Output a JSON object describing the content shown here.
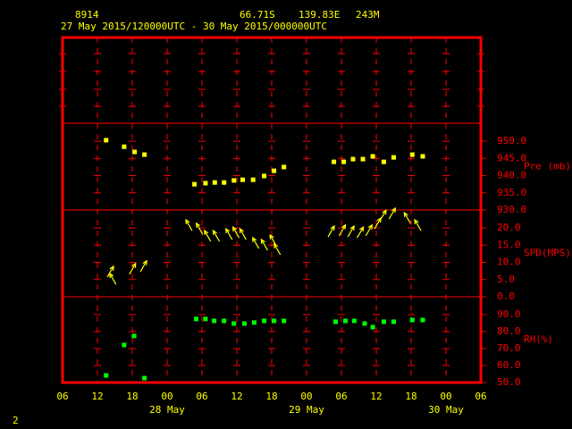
{
  "header": {
    "station": "8914",
    "lat": "66.71S",
    "lon": "139.83E",
    "elev": "243M",
    "period": "27 May 2015/120000UTC - 30 May 2015/000000UTC"
  },
  "page_number": "2",
  "chart_data": [
    {
      "type": "scatter",
      "ylabel": "Pre (mb)",
      "color": "#ffff00",
      "grid": true,
      "x": [
        7.5,
        10.6,
        12.4,
        14.1,
        22.7,
        24.6,
        26.2,
        27.8,
        29.5,
        31,
        32.8,
        34.7,
        36.4,
        38.1,
        46.7,
        48.4,
        50,
        51.7,
        53.4,
        55.3,
        57,
        60.2,
        62
      ],
      "values": [
        950.3,
        948.4,
        946.9,
        946.1,
        937.5,
        937.8,
        938,
        938,
        938.6,
        938.8,
        938.8,
        939.9,
        941.4,
        942.5,
        944,
        944,
        944.8,
        944.8,
        945.6,
        944,
        945.3,
        946.1,
        945.6
      ],
      "xlim": [
        0,
        72
      ],
      "ylim": [
        930,
        955.2
      ],
      "yticks": [
        {
          "value": 930,
          "label": "930.0"
        },
        {
          "value": 935,
          "label": "935.0"
        },
        {
          "value": 940,
          "label": "940.0"
        },
        {
          "value": 945,
          "label": "945.0"
        },
        {
          "value": 950,
          "label": "950.0"
        }
      ]
    },
    {
      "type": "wind",
      "ylabel": "SPD(MPS)",
      "color": "#ffff00",
      "grid": true,
      "x": [
        7.7,
        9.2,
        11.5,
        13.4,
        22.3,
        24.1,
        25.5,
        27,
        29.2,
        30.4,
        31.6,
        33.8,
        35.3,
        36.8,
        37.5,
        45.7,
        47.6,
        49.1,
        50.7,
        52.2,
        53.7,
        54.6,
        56.2,
        59.9,
        61.7
      ],
      "values": [
        5.7,
        3.6,
        6.5,
        7.3,
        19.2,
        18.2,
        16.1,
        16.1,
        16.6,
        17.1,
        16.6,
        14,
        13.5,
        14.8,
        12.2,
        17.4,
        17.7,
        17.4,
        17.1,
        17.7,
        19.7,
        22,
        22.6,
        21.3,
        19.2
      ],
      "directions": [
        30,
        330,
        30,
        30,
        330,
        330,
        330,
        330,
        330,
        330,
        330,
        330,
        330,
        330,
        330,
        30,
        30,
        30,
        30,
        30,
        30,
        30,
        30,
        330,
        330
      ],
      "xlim": [
        0,
        72
      ],
      "ylim": [
        0,
        25.2
      ],
      "yticks": [
        {
          "value": 0,
          "label": "0.0"
        },
        {
          "value": 5,
          "label": "5.0"
        },
        {
          "value": 10,
          "label": "10.0"
        },
        {
          "value": 15,
          "label": "15.0"
        },
        {
          "value": 20,
          "label": "20.0"
        }
      ]
    },
    {
      "type": "scatter",
      "ylabel": "RH(%)",
      "color": "#00ff00",
      "grid": true,
      "x": [
        7.5,
        10.6,
        12.3,
        14.1,
        23,
        24.6,
        26.1,
        27.8,
        29.5,
        31.3,
        33,
        34.7,
        36.4,
        38.1,
        47,
        48.7,
        50.2,
        52,
        53.4,
        55.3,
        57,
        60.2,
        62
      ],
      "values": [
        54.2,
        72.1,
        77.4,
        52.6,
        87.4,
        87.4,
        86.3,
        86.3,
        84.7,
        84.7,
        85.3,
        86.3,
        86.3,
        86.3,
        85.8,
        86.3,
        86.3,
        84.7,
        82.6,
        85.8,
        85.8,
        86.8,
        86.8
      ],
      "xlim": [
        0,
        72
      ],
      "ylim": [
        50,
        100.5
      ],
      "yticks": [
        {
          "value": 50,
          "label": "50.0"
        },
        {
          "value": 60,
          "label": "60.0"
        },
        {
          "value": 70,
          "label": "70.0"
        },
        {
          "value": 80,
          "label": "80.0"
        },
        {
          "value": 90,
          "label": "90.0"
        }
      ],
      "xticks": [
        {
          "value": 0,
          "label": "06"
        },
        {
          "value": 6,
          "label": "12"
        },
        {
          "value": 12,
          "label": "18"
        },
        {
          "value": 18,
          "label": "00"
        },
        {
          "value": 24,
          "label": "06"
        },
        {
          "value": 30,
          "label": "12"
        },
        {
          "value": 36,
          "label": "18"
        },
        {
          "value": 42,
          "label": "00"
        },
        {
          "value": 48,
          "label": "06"
        },
        {
          "value": 54,
          "label": "12"
        },
        {
          "value": 60,
          "label": "18"
        },
        {
          "value": 66,
          "label": "00"
        },
        {
          "value": 72,
          "label": "06"
        }
      ],
      "date_labels": [
        {
          "value": 18,
          "label": "28 May"
        },
        {
          "value": 42,
          "label": "29 May"
        },
        {
          "value": 66,
          "label": "30 May"
        }
      ]
    }
  ]
}
